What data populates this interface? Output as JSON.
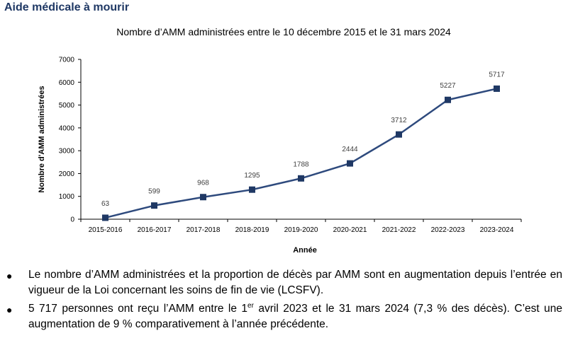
{
  "page": {
    "heading": "Aide médicale à mourir"
  },
  "chart_data": {
    "type": "line",
    "title": "Nombre d’AMM administrées entre le 10 décembre 2015 et le 31 mars 2024",
    "xlabel": "Année",
    "ylabel": "Nombre d'AMM administrées",
    "categories": [
      "2015-2016",
      "2016-2017",
      "2017-2018",
      "2018-2019",
      "2019-2020",
      "2020-2021",
      "2021-2022",
      "2022-2023",
      "2023-2024"
    ],
    "values": [
      63,
      599,
      968,
      1295,
      1788,
      2444,
      3712,
      5227,
      5717
    ],
    "ylim": [
      0,
      7000
    ],
    "yticks": [
      0,
      1000,
      2000,
      3000,
      4000,
      5000,
      6000,
      7000
    ],
    "grid": false,
    "legend": "none",
    "line_color": "#2e4a7d",
    "marker_color": "#1f3864"
  },
  "bullets": [
    {
      "text": "Le nombre d’AMM administrées et la proportion de décès par AMM sont en augmentation depuis l’entrée en vigueur de la Loi concernant les soins de fin de vie (LCSFV)."
    },
    {
      "text_before": "5 717 personnes ont reçu l’AMM entre le 1",
      "superscript": "er",
      "text_after": " avril 2023 et le 31 mars 2024 (7,3 % des décès). C’est une augmentation de 9 % comparativement à l’année précédente."
    }
  ]
}
